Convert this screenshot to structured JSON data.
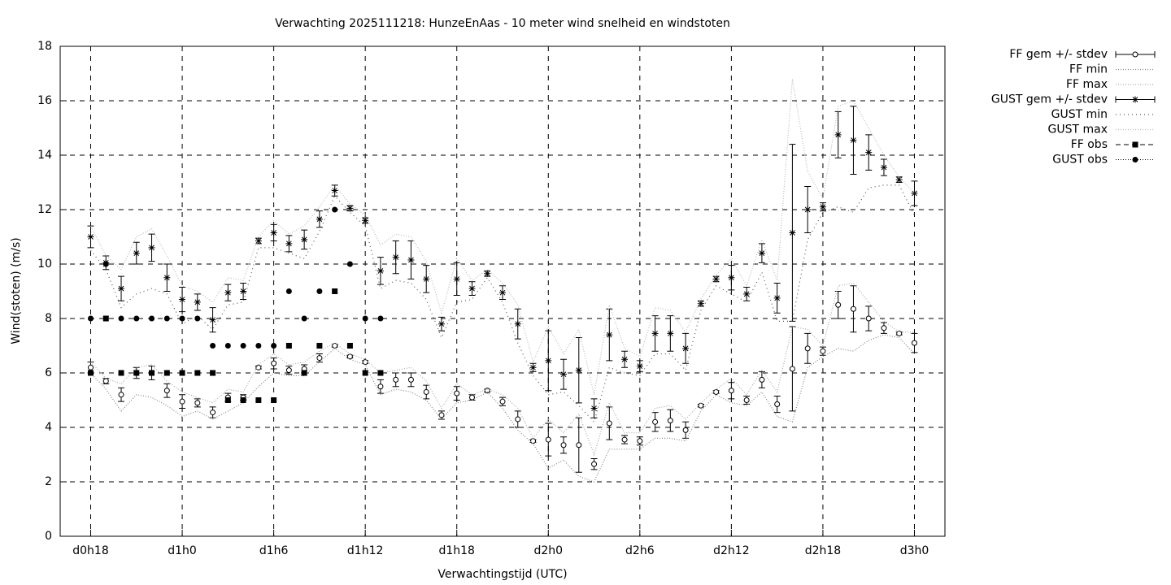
{
  "chart_data": {
    "type": "errorbar",
    "title": "Verwachting 2025111218: HunzeEnAas - 10 meter wind snelheid en windstoten",
    "xlabel": "Verwachtingstijd (UTC)",
    "ylabel": "Wind(stoten) (m/s)",
    "x": [
      0,
      1,
      2,
      3,
      4,
      5,
      6,
      7,
      8,
      9,
      10,
      11,
      12,
      13,
      14,
      15,
      16,
      17,
      18,
      19,
      20,
      21,
      22,
      23,
      24,
      25,
      26,
      27,
      28,
      29,
      30,
      31,
      32,
      33,
      34,
      35,
      36,
      37,
      38,
      39,
      40,
      41,
      42,
      43,
      44,
      45,
      46,
      47,
      48,
      49,
      50,
      51,
      52,
      53,
      54
    ],
    "xlim": [
      -2,
      56
    ],
    "xticks": [
      {
        "value": 0,
        "label": "d0h18"
      },
      {
        "value": 6,
        "label": "d1h0"
      },
      {
        "value": 12,
        "label": "d1h6"
      },
      {
        "value": 18,
        "label": "d1h12"
      },
      {
        "value": 24,
        "label": "d1h18"
      },
      {
        "value": 30,
        "label": "d2h0"
      },
      {
        "value": 36,
        "label": "d2h6"
      },
      {
        "value": 42,
        "label": "d2h12"
      },
      {
        "value": 48,
        "label": "d2h18"
      },
      {
        "value": 54,
        "label": "d3h0"
      }
    ],
    "ylim": [
      0,
      18
    ],
    "yticks": [
      0,
      2,
      4,
      6,
      8,
      10,
      12,
      14,
      16,
      18
    ],
    "grid": true,
    "legend": "outside-top-right",
    "series": [
      {
        "name": "FF gem +/- stdev",
        "style": "errorbars",
        "marker": "open-circle",
        "color": "#000000",
        "values": [
          6.2,
          5.7,
          5.2,
          6.0,
          6.0,
          5.35,
          4.95,
          4.9,
          4.55,
          5.1,
          5.1,
          6.2,
          6.35,
          6.1,
          6.15,
          6.55,
          7.0,
          6.6,
          6.4,
          5.5,
          5.75,
          5.75,
          5.3,
          4.45,
          5.25,
          5.1,
          5.35,
          4.95,
          4.3,
          3.5,
          3.55,
          3.35,
          3.35,
          2.65,
          4.15,
          3.55,
          3.5,
          4.2,
          4.25,
          3.9,
          4.8,
          5.3,
          5.35,
          5.0,
          5.75,
          4.85,
          6.15,
          6.9,
          6.8,
          8.5,
          8.35,
          8.0,
          7.65,
          7.45,
          7.1
        ],
        "errors": [
          0.2,
          0.1,
          0.25,
          0.2,
          0.25,
          0.25,
          0.25,
          0.15,
          0.2,
          0.15,
          0.1,
          0.05,
          0.2,
          0.15,
          0.15,
          0.15,
          0.05,
          0.05,
          0.05,
          0.25,
          0.25,
          0.25,
          0.25,
          0.15,
          0.25,
          0.1,
          0.05,
          0.15,
          0.3,
          0.05,
          0.6,
          0.3,
          1.0,
          0.2,
          0.6,
          0.15,
          0.15,
          0.35,
          0.4,
          0.3,
          0.05,
          0.05,
          0.3,
          0.15,
          0.3,
          0.3,
          1.55,
          0.55,
          0.15,
          0.5,
          0.85,
          0.45,
          0.2,
          0.05,
          0.35
        ]
      },
      {
        "name": "FF min",
        "style": "dotted",
        "dash": "1 2",
        "color": "#888888",
        "values": [
          6.0,
          5.4,
          4.6,
          5.2,
          5.1,
          4.8,
          4.4,
          4.6,
          4.3,
          4.6,
          4.9,
          5.5,
          6.0,
          5.9,
          5.9,
          6.4,
          6.9,
          6.5,
          6.3,
          5.2,
          5.4,
          5.3,
          5.0,
          4.3,
          4.9,
          5.0,
          5.3,
          4.7,
          3.9,
          3.4,
          2.5,
          2.8,
          2.2,
          2.0,
          3.2,
          3.2,
          3.2,
          3.6,
          3.6,
          3.5,
          4.6,
          5.2,
          4.9,
          4.8,
          5.3,
          4.4,
          4.2,
          6.2,
          6.6,
          6.9,
          6.8,
          7.2,
          7.4,
          7.3,
          6.7
        ]
      },
      {
        "name": "FF max",
        "style": "dotted",
        "dash": "1 2",
        "color": "#aaaaaa",
        "values": [
          6.4,
          5.8,
          5.6,
          6.2,
          6.3,
          5.7,
          5.3,
          5.1,
          4.9,
          5.4,
          5.3,
          6.3,
          6.7,
          6.3,
          6.4,
          6.8,
          7.1,
          6.7,
          6.5,
          6.0,
          6.1,
          6.2,
          5.7,
          4.7,
          5.6,
          5.2,
          5.4,
          5.2,
          4.7,
          3.6,
          4.3,
          3.8,
          4.5,
          3.0,
          4.9,
          3.8,
          3.8,
          4.7,
          4.8,
          4.3,
          4.9,
          5.4,
          5.8,
          5.2,
          6.1,
          5.3,
          7.7,
          7.6,
          7.0,
          9.2,
          9.3,
          8.6,
          7.9,
          7.5,
          7.5
        ]
      },
      {
        "name": "GUST gem +/- stdev",
        "style": "errorbars",
        "marker": "star",
        "color": "#000000",
        "values": [
          11.0,
          10.05,
          9.1,
          10.4,
          10.6,
          9.5,
          8.7,
          8.6,
          7.95,
          8.95,
          9.0,
          10.85,
          11.15,
          10.75,
          10.9,
          11.65,
          12.7,
          12.05,
          11.6,
          9.75,
          10.25,
          10.15,
          9.45,
          7.8,
          9.45,
          9.1,
          9.65,
          8.95,
          7.8,
          6.2,
          6.45,
          5.95,
          6.1,
          4.7,
          7.4,
          6.5,
          6.25,
          7.45,
          7.45,
          6.9,
          8.55,
          9.45,
          9.5,
          8.9,
          10.4,
          8.75,
          11.15,
          12.0,
          12.1,
          14.75,
          14.55,
          14.1,
          13.55,
          13.1,
          12.6
        ],
        "errors": [
          0.4,
          0.25,
          0.45,
          0.4,
          0.5,
          0.5,
          0.45,
          0.3,
          0.45,
          0.3,
          0.3,
          0.1,
          0.3,
          0.3,
          0.35,
          0.3,
          0.2,
          0.1,
          0.1,
          0.5,
          0.6,
          0.7,
          0.5,
          0.25,
          0.6,
          0.25,
          0.1,
          0.25,
          0.55,
          0.15,
          1.1,
          0.55,
          1.2,
          0.35,
          0.95,
          0.3,
          0.2,
          0.65,
          0.65,
          0.55,
          0.1,
          0.1,
          0.45,
          0.25,
          0.35,
          0.55,
          3.25,
          0.85,
          0.15,
          0.85,
          1.25,
          0.65,
          0.3,
          0.1,
          0.45
        ]
      },
      {
        "name": "GUST min",
        "style": "dotted",
        "dash": "1 4",
        "color": "#555555",
        "values": [
          10.5,
          9.8,
          8.4,
          8.9,
          9.1,
          8.9,
          7.8,
          8.1,
          7.6,
          8.5,
          8.6,
          10.6,
          10.6,
          10.4,
          10.2,
          11.2,
          12.5,
          11.9,
          11.4,
          9.1,
          9.4,
          9.3,
          8.7,
          7.3,
          8.6,
          8.7,
          9.5,
          8.6,
          7.1,
          5.9,
          5.2,
          5.3,
          4.8,
          4.2,
          6.2,
          6.0,
          5.9,
          6.7,
          6.7,
          6.1,
          8.3,
          9.2,
          8.9,
          8.6,
          9.7,
          7.9,
          7.9,
          10.9,
          11.9,
          12.1,
          11.9,
          12.8,
          12.9,
          12.9,
          11.8
        ]
      },
      {
        "name": "GUST max",
        "style": "dotted",
        "dash": "1 2",
        "color": "#bbbbbb",
        "values": [
          11.4,
          10.3,
          9.8,
          11.0,
          11.3,
          10.3,
          9.2,
          9.0,
          8.6,
          9.5,
          9.4,
          11.0,
          11.6,
          11.1,
          11.4,
          12.1,
          12.9,
          12.2,
          11.8,
          10.7,
          11.1,
          11.0,
          10.1,
          8.2,
          10.2,
          9.4,
          9.8,
          9.3,
          8.5,
          6.4,
          7.7,
          6.7,
          7.6,
          5.2,
          8.5,
          6.9,
          6.6,
          8.4,
          8.3,
          7.5,
          8.7,
          9.6,
          10.2,
          9.2,
          10.9,
          9.4,
          16.8,
          13.4,
          12.4,
          15.8,
          16.0,
          15.0,
          14.0,
          13.2,
          12.6
        ]
      },
      {
        "name": "FF obs",
        "style": "points",
        "marker": "square",
        "color": "#000000",
        "values": [
          6,
          8,
          6,
          6,
          6,
          6,
          6,
          6,
          6,
          5,
          5,
          5,
          5,
          7,
          6,
          7,
          9,
          7,
          6,
          6,
          null,
          null,
          null,
          null,
          null,
          null,
          null,
          null,
          null,
          null,
          null,
          null,
          null,
          null,
          null,
          null,
          null,
          null,
          null,
          null,
          null,
          null,
          null,
          null,
          null,
          null,
          null,
          null,
          null,
          null,
          null,
          null,
          null,
          null,
          null
        ]
      },
      {
        "name": "GUST obs",
        "style": "points",
        "marker": "dot",
        "color": "#000000",
        "values": [
          8,
          10,
          8,
          8,
          8,
          8,
          8,
          8,
          7,
          7,
          7,
          7,
          7,
          9,
          8,
          9,
          12,
          10,
          8,
          8,
          null,
          null,
          null,
          null,
          null,
          null,
          null,
          null,
          null,
          null,
          null,
          null,
          null,
          null,
          null,
          null,
          null,
          null,
          null,
          null,
          null,
          null,
          null,
          null,
          null,
          null,
          null,
          null,
          null,
          null,
          null,
          null,
          null,
          null,
          null
        ]
      }
    ]
  }
}
